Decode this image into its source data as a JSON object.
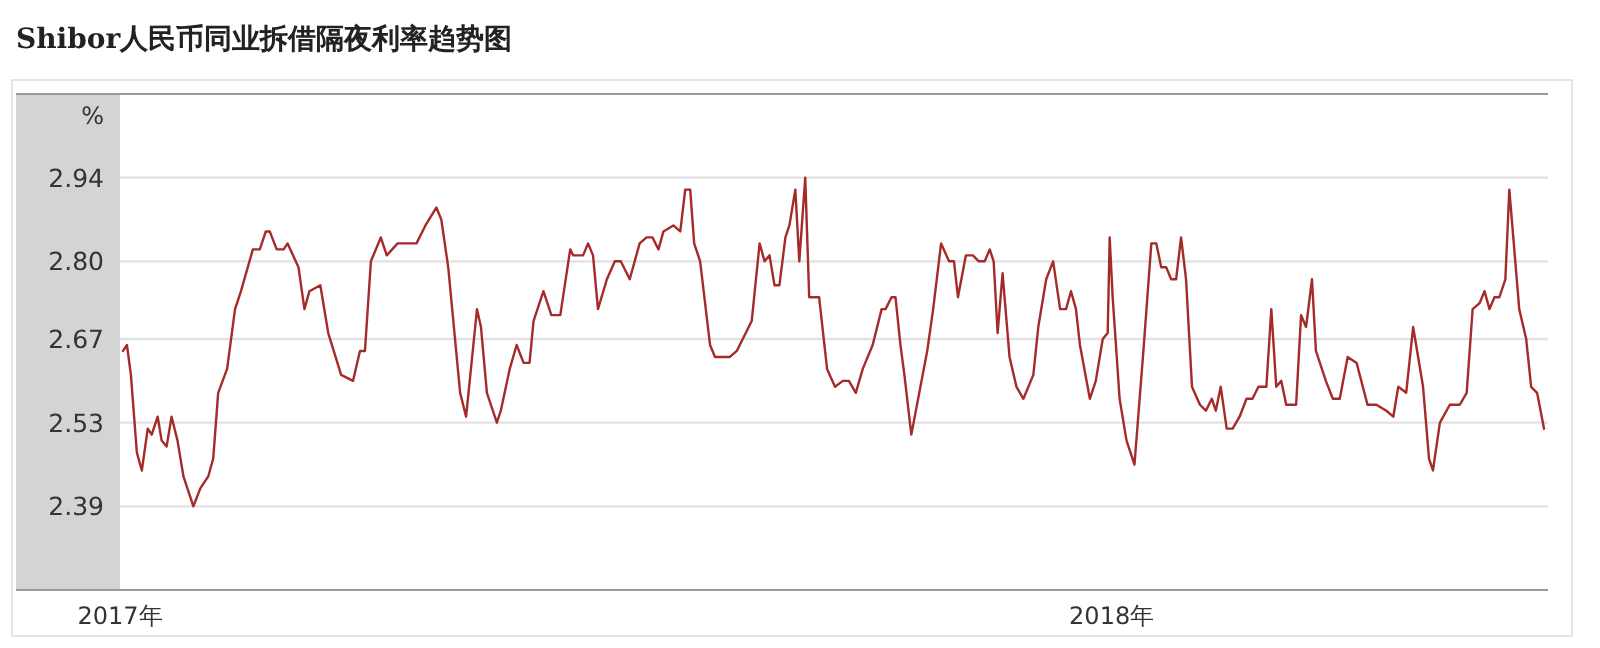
{
  "chart_data": {
    "type": "line",
    "title": "Shibor人民币同业拆借隔夜利率趋势图",
    "ylabel": "%",
    "x": [
      2017.003,
      2017.007,
      2017.011,
      2017.017,
      2017.022,
      2017.028,
      2017.032,
      2017.038,
      2017.042,
      2017.047,
      2017.052,
      2017.058,
      2017.064,
      2017.074,
      2017.081,
      2017.089,
      2017.094,
      2017.099,
      2017.108,
      2017.116,
      2017.122,
      2017.134,
      2017.141,
      2017.147,
      2017.151,
      2017.158,
      2017.165,
      2017.169,
      2017.18,
      2017.186,
      2017.191,
      2017.202,
      2017.21,
      2017.223,
      2017.235,
      2017.242,
      2017.247,
      2017.253,
      2017.263,
      2017.269,
      2017.28,
      2017.299,
      2017.308,
      2017.319,
      2017.324,
      2017.331,
      2017.343,
      2017.349,
      2017.36,
      2017.364,
      2017.37,
      2017.38,
      2017.384,
      2017.393,
      2017.4,
      2017.407,
      2017.413,
      2017.417,
      2017.427,
      2017.435,
      2017.444,
      2017.454,
      2017.457,
      2017.467,
      2017.472,
      2017.477,
      2017.482,
      2017.491,
      2017.499,
      2017.505,
      2017.514,
      2017.524,
      2017.531,
      2017.537,
      2017.543,
      2017.548,
      2017.558,
      2017.565,
      2017.57,
      2017.575,
      2017.579,
      2017.585,
      2017.595,
      2017.6,
      2017.615,
      2017.622,
      2017.628,
      2017.637,
      2017.645,
      2017.65,
      2017.655,
      2017.66,
      2017.665,
      2017.671,
      2017.675,
      2017.681,
      2017.685,
      2017.691,
      2017.695,
      2017.705,
      2017.713,
      2017.721,
      2017.729,
      2017.735,
      2017.742,
      2017.749,
      2017.759,
      2017.768,
      2017.772,
      2017.778,
      2017.782,
      2017.787,
      2017.791,
      2017.798,
      2017.806,
      2017.814,
      2017.82,
      2017.828,
      2017.836,
      2017.841,
      2017.845,
      2017.853,
      2017.86,
      2017.866,
      2017.872,
      2017.877,
      2017.881,
      2017.885,
      2017.89,
      2017.897,
      2017.904,
      2017.911,
      2017.921,
      2017.926,
      2017.934,
      2017.941,
      2017.948,
      2017.954,
      2017.959,
      2017.964,
      2017.968,
      2017.978,
      2017.984,
      2017.991,
      2017.996,
      2017.998,
      2018.001,
      2018.008,
      2018.015,
      2018.023,
      2018.032,
      2018.04,
      2018.045,
      2018.05,
      2018.055,
      2018.06,
      2018.065,
      2018.07,
      2018.075,
      2018.081,
      2018.089,
      2018.095,
      2018.101,
      2018.105,
      2018.11,
      2018.116,
      2018.122,
      2018.129,
      2018.136,
      2018.142,
      2018.148,
      2018.156,
      2018.161,
      2018.166,
      2018.171,
      2018.176,
      2018.179,
      2018.186,
      2018.191,
      2018.196,
      2018.202,
      2018.206,
      2018.216,
      2018.223,
      2018.23,
      2018.238,
      2018.247,
      2018.258,
      2018.267,
      2018.277,
      2018.284,
      2018.289,
      2018.297,
      2018.304,
      2018.314,
      2018.32,
      2018.324,
      2018.331,
      2018.341,
      2018.351,
      2018.358,
      2018.364,
      2018.371,
      2018.376,
      2018.381,
      2018.386,
      2018.391,
      2018.397,
      2018.401,
      2018.411,
      2018.418,
      2018.423,
      2018.429,
      2018.436
    ],
    "series": [
      {
        "color": "#a52a2a",
        "values": [
          2.65,
          2.66,
          2.61,
          2.48,
          2.45,
          2.52,
          2.51,
          2.54,
          2.5,
          2.49,
          2.54,
          2.5,
          2.44,
          2.39,
          2.42,
          2.44,
          2.47,
          2.58,
          2.62,
          2.72,
          2.75,
          2.82,
          2.82,
          2.85,
          2.85,
          2.82,
          2.82,
          2.83,
          2.79,
          2.72,
          2.75,
          2.76,
          2.68,
          2.61,
          2.6,
          2.65,
          2.65,
          2.8,
          2.84,
          2.81,
          2.83,
          2.83,
          2.86,
          2.89,
          2.87,
          2.79,
          2.58,
          2.54,
          2.72,
          2.69,
          2.58,
          2.53,
          2.55,
          2.62,
          2.66,
          2.63,
          2.63,
          2.7,
          2.75,
          2.71,
          2.71,
          2.82,
          2.81,
          2.81,
          2.83,
          2.81,
          2.72,
          2.77,
          2.8,
          2.8,
          2.77,
          2.83,
          2.84,
          2.84,
          2.82,
          2.85,
          2.86,
          2.85,
          2.92,
          2.92,
          2.83,
          2.8,
          2.66,
          2.64,
          2.64,
          2.65,
          2.67,
          2.7,
          2.83,
          2.8,
          2.81,
          2.76,
          2.76,
          2.84,
          2.86,
          2.92,
          2.8,
          2.94,
          2.74,
          2.74,
          2.62,
          2.59,
          2.6,
          2.6,
          2.58,
          2.62,
          2.66,
          2.72,
          2.72,
          2.74,
          2.74,
          2.66,
          2.61,
          2.51,
          2.58,
          2.65,
          2.72,
          2.83,
          2.8,
          2.8,
          2.74,
          2.81,
          2.81,
          2.8,
          2.8,
          2.82,
          2.8,
          2.68,
          2.78,
          2.64,
          2.59,
          2.57,
          2.61,
          2.69,
          2.77,
          2.8,
          2.72,
          2.72,
          2.75,
          2.72,
          2.66,
          2.57,
          2.6,
          2.67,
          2.68,
          2.84,
          2.74,
          2.57,
          2.5,
          2.46,
          2.65,
          2.83,
          2.83,
          2.79,
          2.79,
          2.77,
          2.77,
          2.84,
          2.77,
          2.59,
          2.56,
          2.55,
          2.57,
          2.55,
          2.59,
          2.52,
          2.52,
          2.54,
          2.57,
          2.57,
          2.59,
          2.59,
          2.72,
          2.59,
          2.6,
          2.56,
          2.56,
          2.56,
          2.71,
          2.69,
          2.77,
          2.65,
          2.6,
          2.57,
          2.57,
          2.64,
          2.63,
          2.56,
          2.56,
          2.55,
          2.54,
          2.59,
          2.58,
          2.69,
          2.59,
          2.47,
          2.45,
          2.53,
          2.56,
          2.56,
          2.58,
          2.72,
          2.73,
          2.75,
          2.72,
          2.74,
          2.74,
          2.77,
          2.92,
          2.72,
          2.67,
          2.59,
          2.58,
          2.52
        ]
      }
    ],
    "xlim": [
      2017.0,
      2018.44
    ],
    "xticks": [
      {
        "value": 2017,
        "label": "2017年"
      },
      {
        "value": 2018,
        "label": "2018年"
      }
    ],
    "ylim": [
      2.25,
      3.08
    ],
    "yticks": [
      2.39,
      2.53,
      2.67,
      {
        "value": 2.8,
        "label": "2.80"
      },
      2.94
    ],
    "grid": "y"
  }
}
